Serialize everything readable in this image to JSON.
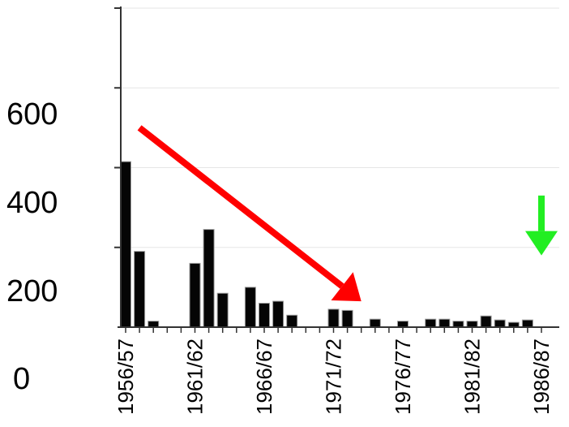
{
  "chart_data": {
    "type": "bar",
    "title": "",
    "xlabel": "",
    "ylabel": "",
    "ylim": [
      0,
      800
    ],
    "grid": true,
    "y_tick_labels": [
      "0",
      "200",
      "400",
      "600"
    ],
    "x_tick_labels": [
      "1956/57",
      "1961/62",
      "1966/67",
      "1971/72",
      "1976/77",
      "1981/82",
      "1986/87"
    ],
    "categories": [
      "1956/57",
      "1957/58",
      "1958/59",
      "1959/60",
      "1960/61",
      "1961/62",
      "1962/63",
      "1963/64",
      "1964/65",
      "1965/66",
      "1966/67",
      "1967/68",
      "1968/69",
      "1969/70",
      "1970/71",
      "1971/72",
      "1972/73",
      "1973/74",
      "1974/75",
      "1975/76",
      "1976/77",
      "1977/78",
      "1978/79",
      "1979/80",
      "1980/81",
      "1981/82",
      "1982/83",
      "1983/84",
      "1984/85",
      "1985/86",
      "1986/87"
    ],
    "values": [
      415,
      190,
      15,
      0,
      0,
      160,
      245,
      85,
      0,
      100,
      60,
      65,
      30,
      0,
      0,
      45,
      42,
      0,
      20,
      0,
      15,
      0,
      20,
      20,
      15,
      15,
      28,
      18,
      12,
      18,
      0
    ],
    "annotations": [
      {
        "type": "arrow",
        "color": "#ff0000",
        "from": {
          "x": "1957/58",
          "y": 500
        },
        "to": {
          "x": "1973/74",
          "y": 65
        }
      },
      {
        "type": "arrow",
        "color": "#22ee22",
        "from": {
          "x": "1986/87",
          "y": 330
        },
        "to": {
          "x": "1986/87",
          "y": 180
        }
      }
    ]
  }
}
